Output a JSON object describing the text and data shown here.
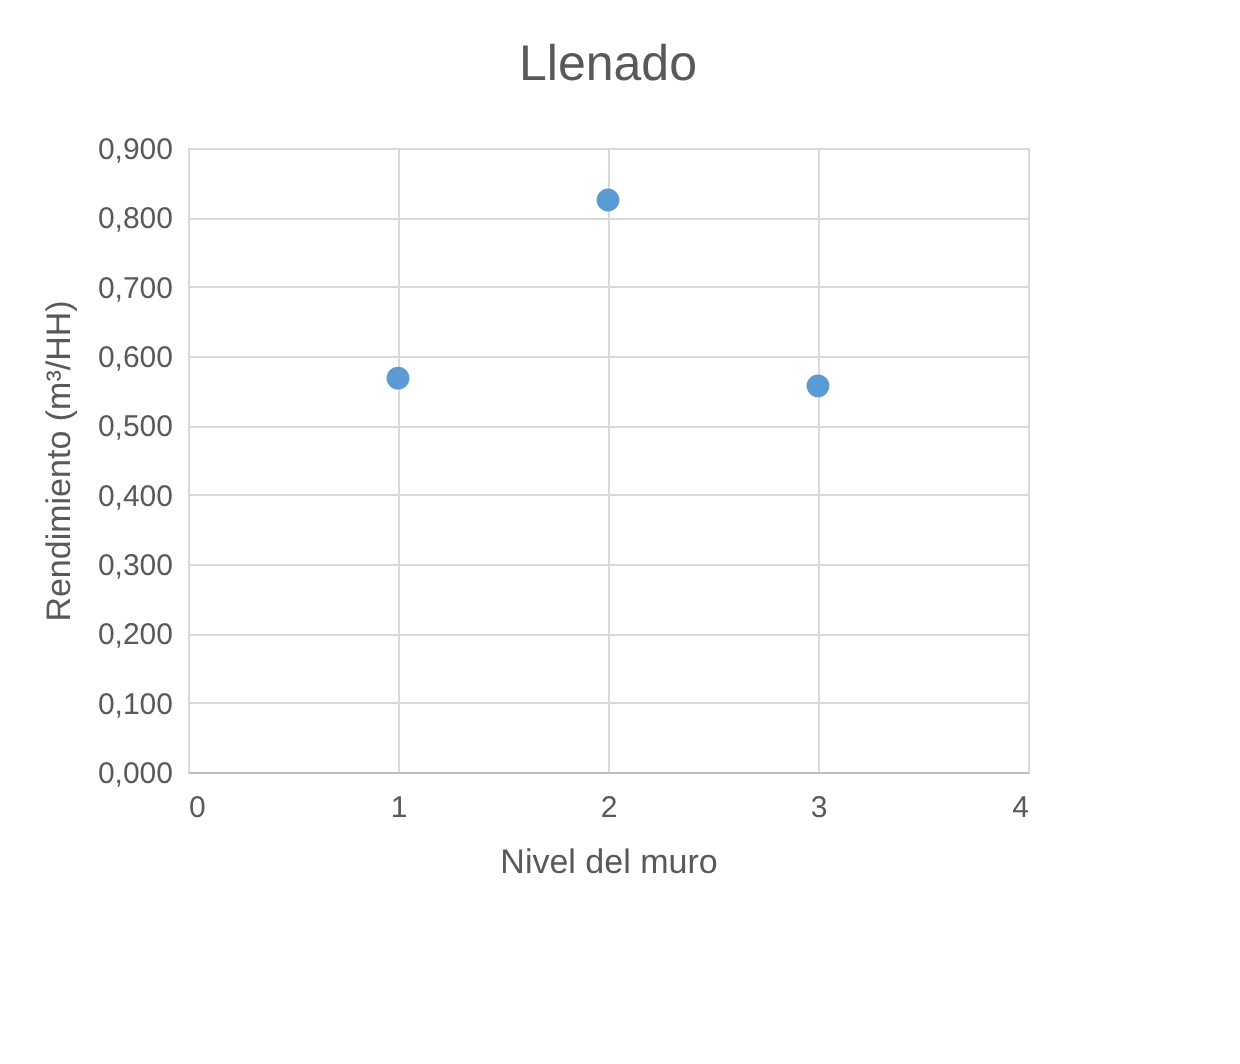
{
  "chart_data": {
    "type": "scatter",
    "title": "Llenado",
    "xlabel": "Nivel del muro",
    "ylabel": "Rendimiento (m³/HH)",
    "x": [
      1,
      2,
      3
    ],
    "series": [
      {
        "color": "#5b9bd5",
        "values": [
          0.568,
          0.825,
          0.557
        ]
      }
    ],
    "xlim": [
      0,
      4
    ],
    "xticks": [
      0,
      1,
      2,
      3,
      4
    ],
    "ylim": [
      0,
      0.9
    ],
    "yticks": [
      {
        "value": 0,
        "label": "0,000"
      },
      {
        "value": 0.1,
        "label": "0,100"
      },
      {
        "value": 0.2,
        "label": "0,200"
      },
      {
        "value": 0.3,
        "label": "0,300"
      },
      {
        "value": 0.4,
        "label": "0,400"
      },
      {
        "value": 0.5,
        "label": "0,500"
      },
      {
        "value": 0.6,
        "label": "0,600"
      },
      {
        "value": 0.7,
        "label": "0,700"
      },
      {
        "value": 0.8,
        "label": "0,800"
      },
      {
        "value": 0.9,
        "label": "0,900"
      }
    ],
    "grid": true,
    "marker": "circle",
    "legend": false
  }
}
